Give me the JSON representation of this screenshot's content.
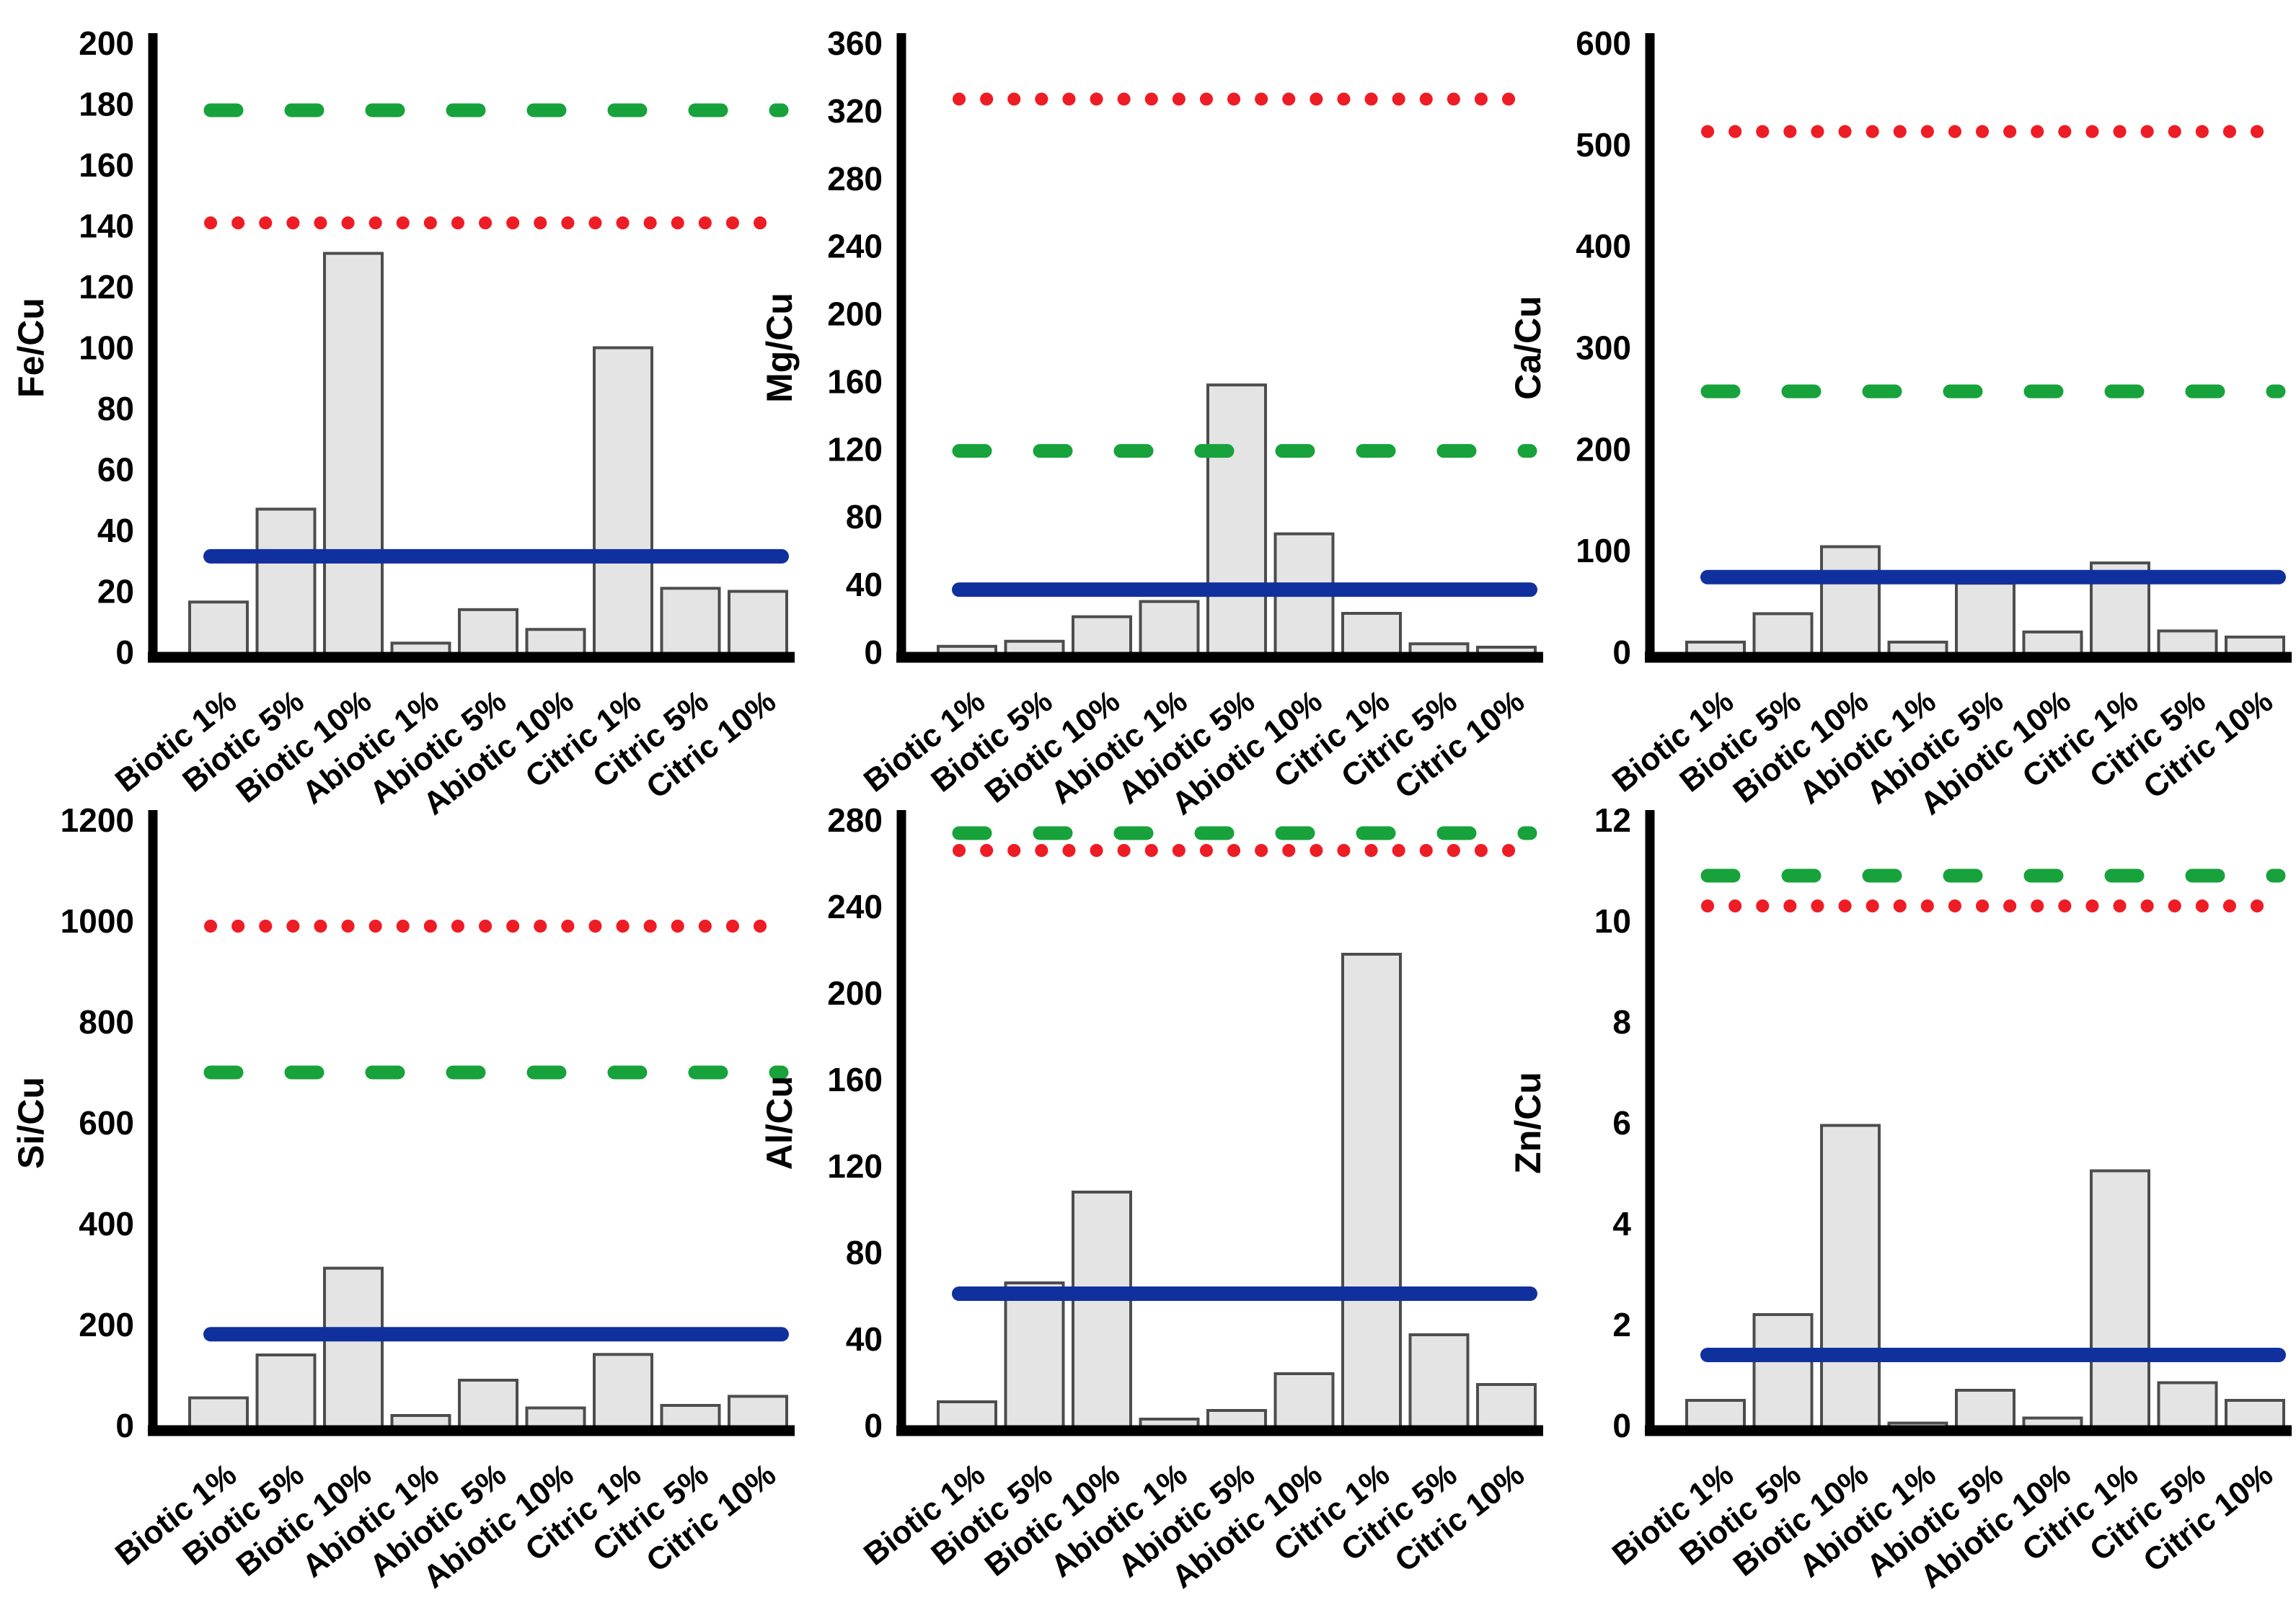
{
  "figure": {
    "title": "",
    "background": "#ffffff",
    "categories": [
      "Biotic 1%",
      "Biotic 5%",
      "Biotic 10%",
      "Abiotic 1%",
      "Abiotic 5%",
      "Abiotic 10%",
      "Citric 1%",
      "Citric 5%",
      "Citric 10%"
    ],
    "bar": {
      "fill": "#e4e4e4",
      "stroke": "#4d4d4d"
    },
    "axis_color": "#000000",
    "line_colors": {
      "green_dashed": "#17a23b",
      "red_dotted": "#ee1c25",
      "blue_solid": "#10309e"
    }
  },
  "chart_data": [
    {
      "type": "bar",
      "title": "",
      "xlabel": "",
      "ylabel": "Fe/Cu",
      "categories": [
        "Biotic 1%",
        "Biotic 5%",
        "Biotic 10%",
        "Abiotic 1%",
        "Abiotic 5%",
        "Abiotic 10%",
        "Citric 1%",
        "Citric 5%",
        "Citric 10%"
      ],
      "values": [
        16.5,
        47,
        131,
        3,
        14,
        7.5,
        100,
        21,
        20
      ],
      "ylim": [
        0,
        200
      ],
      "yticks": [
        0,
        20,
        40,
        60,
        80,
        100,
        120,
        140,
        160,
        180,
        200
      ],
      "grid": false,
      "legend": "none",
      "reference_lines": [
        {
          "name": "green-dashed",
          "style": "dashed",
          "color": "#17a23b",
          "value": 178
        },
        {
          "name": "red-dotted",
          "style": "dotted",
          "color": "#ee1c25",
          "value": 141
        },
        {
          "name": "blue-solid",
          "style": "solid",
          "color": "#10309e",
          "value": 31.5
        }
      ]
    },
    {
      "type": "bar",
      "title": "",
      "xlabel": "",
      "ylabel": "Mg/Cu",
      "categories": [
        "Biotic 1%",
        "Biotic 5%",
        "Biotic 10%",
        "Abiotic 1%",
        "Abiotic 5%",
        "Abiotic 10%",
        "Citric 1%",
        "Citric 5%",
        "Citric 10%"
      ],
      "values": [
        3.5,
        6.5,
        21,
        30,
        158,
        70,
        23,
        5,
        3
      ],
      "ylim": [
        0,
        360
      ],
      "yticks": [
        0,
        40,
        80,
        120,
        160,
        200,
        240,
        280,
        320,
        360
      ],
      "grid": false,
      "legend": "none",
      "reference_lines": [
        {
          "name": "green-dashed",
          "style": "dashed",
          "color": "#17a23b",
          "value": 119
        },
        {
          "name": "red-dotted",
          "style": "dotted",
          "color": "#ee1c25",
          "value": 327
        },
        {
          "name": "blue-solid",
          "style": "solid",
          "color": "#10309e",
          "value": 37
        }
      ]
    },
    {
      "type": "bar",
      "title": "",
      "xlabel": "",
      "ylabel": "Ca/Cu",
      "categories": [
        "Biotic 1%",
        "Biotic 5%",
        "Biotic 10%",
        "Abiotic 1%",
        "Abiotic 5%",
        "Abiotic 10%",
        "Citric 1%",
        "Citric 5%",
        "Citric 10%"
      ],
      "values": [
        10,
        38,
        104,
        10,
        68,
        20,
        88,
        21,
        15
      ],
      "ylim": [
        0,
        600
      ],
      "yticks": [
        0,
        100,
        200,
        300,
        400,
        500,
        600
      ],
      "grid": false,
      "legend": "none",
      "reference_lines": [
        {
          "name": "green-dashed",
          "style": "dashed",
          "color": "#17a23b",
          "value": 257
        },
        {
          "name": "red-dotted",
          "style": "dotted",
          "color": "#ee1c25",
          "value": 513
        },
        {
          "name": "blue-solid",
          "style": "solid",
          "color": "#10309e",
          "value": 74
        }
      ]
    },
    {
      "type": "bar",
      "title": "",
      "xlabel": "",
      "ylabel": "Si/Cu",
      "categories": [
        "Biotic 1%",
        "Biotic 5%",
        "Biotic 10%",
        "Abiotic 1%",
        "Abiotic 5%",
        "Abiotic 10%",
        "Citric 1%",
        "Citric 5%",
        "Citric 10%"
      ],
      "values": [
        55,
        140,
        312,
        20,
        90,
        35,
        141,
        40,
        58
      ],
      "ylim": [
        0,
        1200
      ],
      "yticks": [
        0,
        200,
        400,
        600,
        800,
        1000,
        1200
      ],
      "grid": false,
      "legend": "none",
      "reference_lines": [
        {
          "name": "green-dashed",
          "style": "dashed",
          "color": "#17a23b",
          "value": 700
        },
        {
          "name": "red-dotted",
          "style": "dotted",
          "color": "#ee1c25",
          "value": 990
        },
        {
          "name": "blue-solid",
          "style": "solid",
          "color": "#10309e",
          "value": 181
        }
      ]
    },
    {
      "type": "bar",
      "title": "",
      "xlabel": "",
      "ylabel": "Al/Cu",
      "categories": [
        "Biotic 1%",
        "Biotic 5%",
        "Biotic 10%",
        "Abiotic 1%",
        "Abiotic 5%",
        "Abiotic 10%",
        "Citric 1%",
        "Citric 5%",
        "Citric 10%"
      ],
      "values": [
        11,
        66,
        108,
        3,
        7,
        24,
        218,
        42,
        19
      ],
      "ylim": [
        0,
        280
      ],
      "yticks": [
        0,
        40,
        80,
        120,
        160,
        200,
        240,
        280
      ],
      "grid": false,
      "legend": "none",
      "reference_lines": [
        {
          "name": "green-dashed",
          "style": "dashed",
          "color": "#17a23b",
          "value": 274
        },
        {
          "name": "red-dotted",
          "style": "dotted",
          "color": "#ee1c25",
          "value": 266
        },
        {
          "name": "blue-solid",
          "style": "solid",
          "color": "#10309e",
          "value": 61
        }
      ]
    },
    {
      "type": "bar",
      "title": "",
      "xlabel": "",
      "ylabel": "Zn/Cu",
      "categories": [
        "Biotic 1%",
        "Biotic 5%",
        "Biotic 10%",
        "Abiotic 1%",
        "Abiotic 5%",
        "Abiotic 10%",
        "Citric 1%",
        "Citric 5%",
        "Citric 10%"
      ],
      "values": [
        0.5,
        2.2,
        5.95,
        0.05,
        0.7,
        0.15,
        5.05,
        0.85,
        0.5
      ],
      "ylim": [
        0,
        12
      ],
      "yticks": [
        0,
        2,
        4,
        6,
        8,
        10,
        12
      ],
      "grid": false,
      "legend": "none",
      "reference_lines": [
        {
          "name": "green-dashed",
          "style": "dashed",
          "color": "#17a23b",
          "value": 10.9
        },
        {
          "name": "red-dotted",
          "style": "dotted",
          "color": "#ee1c25",
          "value": 10.3
        },
        {
          "name": "blue-solid",
          "style": "solid",
          "color": "#10309e",
          "value": 1.4
        }
      ]
    }
  ]
}
